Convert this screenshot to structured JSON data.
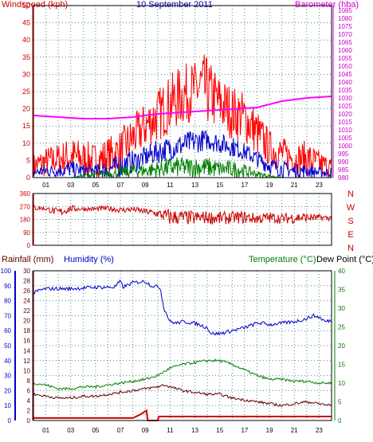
{
  "page": {
    "date_title": "10 September 2011"
  },
  "chart_data": [
    {
      "type": "line",
      "panel": "wind-barometer",
      "title": "10 September 2011",
      "ylabel_left": "Windspeed (kph)",
      "ylabel_right": "Barometer (hba)",
      "x_ticks": [
        "01",
        "03",
        "05",
        "07",
        "09",
        "11",
        "13",
        "15",
        "17",
        "19",
        "21",
        "23"
      ],
      "xlim": [
        0,
        24
      ],
      "ylim_left": [
        0,
        50
      ],
      "ylim_right": [
        980,
        1088
      ],
      "y_ticks_left": [
        0,
        5,
        10,
        15,
        20,
        25,
        30,
        35,
        40,
        45,
        50
      ],
      "y_ticks_right": [
        980,
        985,
        990,
        995,
        1000,
        1005,
        1010,
        1015,
        1020,
        1025,
        1030,
        1035,
        1040,
        1045,
        1050,
        1055,
        1060,
        1065,
        1070,
        1075,
        1080,
        1085
      ],
      "grid": true,
      "colors": {
        "gust": "#ff0000",
        "average": "#0000cc",
        "direction": "#008000",
        "barometer": "#ff00ff",
        "left_axis": "#cc0000",
        "right_axis": "#cc00cc",
        "title": "#000099"
      },
      "series": [
        {
          "axis": "left",
          "style": "band",
          "color": "#ff0000",
          "x": [
            0,
            1,
            2,
            3,
            4,
            5,
            6,
            7,
            7.5,
            8,
            9,
            10,
            11,
            12,
            13,
            13.5,
            14,
            15,
            16,
            17,
            18,
            19,
            20,
            21,
            22,
            23,
            24
          ],
          "low": [
            0,
            0,
            1,
            0,
            0,
            0,
            0,
            1,
            3,
            5,
            8,
            10,
            13,
            15,
            17,
            16,
            15,
            13,
            11,
            10,
            6,
            3,
            2,
            1,
            0,
            0,
            0
          ],
          "high": [
            7,
            9,
            10,
            12,
            11,
            10,
            12,
            14,
            16,
            18,
            22,
            26,
            30,
            33,
            34,
            37,
            35,
            30,
            27,
            25,
            20,
            14,
            12,
            10,
            11,
            8,
            6
          ]
        },
        {
          "axis": "left",
          "style": "band",
          "color": "#0000cc",
          "x": [
            0,
            1,
            2,
            3,
            4,
            5,
            6,
            7,
            8,
            9,
            10,
            11,
            12,
            13,
            14,
            15,
            16,
            17,
            18,
            19,
            20,
            21,
            22,
            23,
            24
          ],
          "low": [
            0,
            0,
            0,
            0,
            0,
            0,
            0,
            0,
            1,
            3,
            4,
            5,
            6,
            7,
            8,
            7,
            6,
            5,
            3,
            1,
            0,
            0,
            0,
            0,
            0
          ],
          "high": [
            3,
            4,
            4,
            5,
            4,
            4,
            5,
            7,
            8,
            9,
            11,
            12,
            13,
            14,
            14,
            13,
            12,
            10,
            8,
            6,
            5,
            4,
            4,
            3,
            3
          ]
        },
        {
          "axis": "left",
          "style": "band",
          "color": "#008000",
          "x": [
            0,
            3,
            4,
            5,
            6,
            7,
            8,
            9,
            10,
            11,
            12,
            13,
            14,
            15,
            16,
            17,
            18,
            19,
            20,
            21,
            24
          ],
          "low": [
            0,
            0,
            0,
            0,
            0,
            0,
            0,
            0,
            0,
            0,
            0,
            0,
            0,
            0,
            0,
            0,
            0,
            0,
            0,
            0,
            0
          ],
          "high": [
            0,
            0,
            1,
            2,
            2,
            3,
            4,
            4,
            5,
            6,
            6,
            6,
            6,
            5,
            5,
            4,
            2,
            1,
            0,
            0,
            0
          ]
        },
        {
          "axis": "right",
          "style": "line",
          "color": "#ff00ff",
          "x": [
            0,
            2,
            4,
            6,
            8,
            10,
            12,
            14,
            16,
            18,
            20,
            22,
            24
          ],
          "y": [
            1019,
            1018,
            1017,
            1017,
            1018,
            1020,
            1021,
            1022,
            1023,
            1024,
            1028,
            1030,
            1031
          ]
        }
      ]
    },
    {
      "type": "line",
      "panel": "wind-direction",
      "xlim": [
        0,
        24
      ],
      "ylim": [
        0,
        360
      ],
      "y_ticks": [
        0,
        90,
        180,
        270,
        360
      ],
      "compass_labels": [
        "N",
        "W",
        "S",
        "E",
        "N"
      ],
      "grid": true,
      "series": [
        {
          "color": "#cc0000",
          "style": "band",
          "x": [
            0,
            1,
            2,
            3,
            4,
            5,
            6,
            7,
            8,
            9,
            10,
            11,
            12,
            13,
            14,
            15,
            16,
            17,
            18,
            19,
            20,
            21,
            22,
            23,
            24
          ],
          "low": [
            240,
            240,
            195,
            230,
            240,
            235,
            240,
            225,
            230,
            215,
            190,
            135,
            145,
            140,
            150,
            140,
            150,
            150,
            145,
            155,
            150,
            150,
            160,
            170,
            170
          ],
          "high": [
            285,
            270,
            260,
            280,
            265,
            270,
            275,
            265,
            270,
            255,
            250,
            255,
            245,
            240,
            240,
            235,
            235,
            240,
            225,
            230,
            220,
            235,
            225,
            215,
            210
          ]
        }
      ]
    },
    {
      "type": "line",
      "panel": "rain-humidity-temperature",
      "labels_left": [
        "Rainfall (mm)",
        "Humidity (%)"
      ],
      "labels_right": [
        "Temperature (°C)",
        "Dew Point (°C)"
      ],
      "x_ticks": [
        "01",
        "03",
        "05",
        "07",
        "09",
        "11",
        "13",
        "15",
        "17",
        "19",
        "21",
        "23"
      ],
      "xlim": [
        0,
        24
      ],
      "ylim_humidity": [
        0,
        100
      ],
      "ylim_rain": [
        0,
        30
      ],
      "ylim_temp": [
        0,
        40
      ],
      "y_ticks_humidity": [
        0,
        10,
        20,
        30,
        40,
        50,
        60,
        70,
        80,
        90,
        100
      ],
      "y_ticks_rain": [
        0,
        2,
        4,
        6,
        8,
        10,
        12,
        14,
        16,
        18,
        20,
        22,
        24,
        26,
        28,
        30
      ],
      "y_ticks_temp": [
        0,
        5,
        10,
        15,
        20,
        25,
        30,
        35,
        40
      ],
      "grid": true,
      "colors": {
        "humidity": "#0000cc",
        "rainfall": "#cc0000",
        "temperature": "#008000",
        "dew_point": "#660000"
      },
      "series": [
        {
          "axis": "humidity",
          "color": "#0000cc",
          "x": [
            0,
            0.5,
            1,
            3,
            5,
            6.5,
            7,
            7.2,
            8,
            9,
            9.5,
            10.2,
            10.5,
            11,
            11.5,
            12,
            13,
            14,
            14.3,
            15,
            16,
            17,
            18,
            18.5,
            19,
            20,
            21,
            22,
            22.5,
            23,
            23.5,
            24
          ],
          "y": [
            85,
            87,
            88,
            88,
            89,
            89,
            93,
            89,
            92,
            93,
            90,
            89,
            75,
            66,
            65,
            66,
            65,
            62,
            58,
            58,
            60,
            62,
            65,
            65,
            64,
            65,
            66,
            68,
            70,
            69,
            66,
            67
          ]
        },
        {
          "axis": "temp",
          "color": "#008000",
          "x": [
            0,
            1,
            2,
            3,
            4,
            5,
            6,
            7,
            8,
            9,
            10,
            11,
            12,
            13,
            14,
            15,
            16,
            17,
            18,
            19,
            20,
            21,
            22,
            23,
            24
          ],
          "y": [
            10,
            9.5,
            8.5,
            8.5,
            9,
            9,
            9.5,
            10,
            10.5,
            11,
            12,
            14,
            15,
            15.5,
            16,
            16,
            15,
            13.5,
            12,
            11,
            11,
            10.5,
            10.5,
            10,
            10
          ]
        },
        {
          "axis": "temp",
          "color": "#660000",
          "x": [
            0,
            1,
            2,
            3,
            4,
            5,
            6,
            7,
            8,
            9,
            10,
            10.5,
            11,
            12,
            13,
            14,
            15,
            16,
            17,
            18,
            19,
            20,
            21,
            22,
            23,
            24
          ],
          "y": [
            7,
            6.5,
            6,
            6,
            6.5,
            6.5,
            7,
            7.5,
            8,
            8.5,
            9,
            9.5,
            9,
            8,
            7.5,
            7,
            7,
            6,
            5.5,
            5,
            4.5,
            4,
            4.5,
            5,
            4.5,
            4
          ]
        },
        {
          "axis": "rain",
          "color": "#cc0000",
          "x": [
            0,
            8,
            8.6,
            9.1,
            9.2,
            9.5,
            10,
            10.1,
            24
          ],
          "y": [
            0.5,
            0.5,
            1.2,
            2,
            0,
            0,
            0,
            0.8,
            0.8
          ]
        }
      ]
    }
  ]
}
